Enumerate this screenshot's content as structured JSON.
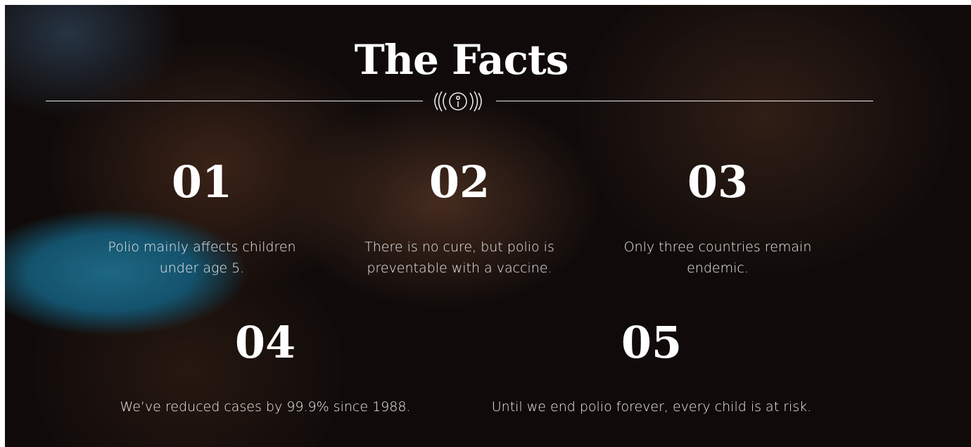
{
  "header": {
    "title": "The Facts"
  },
  "facts": [
    {
      "number": "01",
      "text": "Polio mainly affects children under age 5."
    },
    {
      "number": "02",
      "text": "There is no cure, but polio is preventable with a vaccine."
    },
    {
      "number": "03",
      "text": "Only three countries remain endemic."
    },
    {
      "number": "04",
      "text": "We’ve reduced cases by 99.9% since 1988."
    },
    {
      "number": "05",
      "text": "Until we end polio forever, every child is at risk."
    }
  ]
}
